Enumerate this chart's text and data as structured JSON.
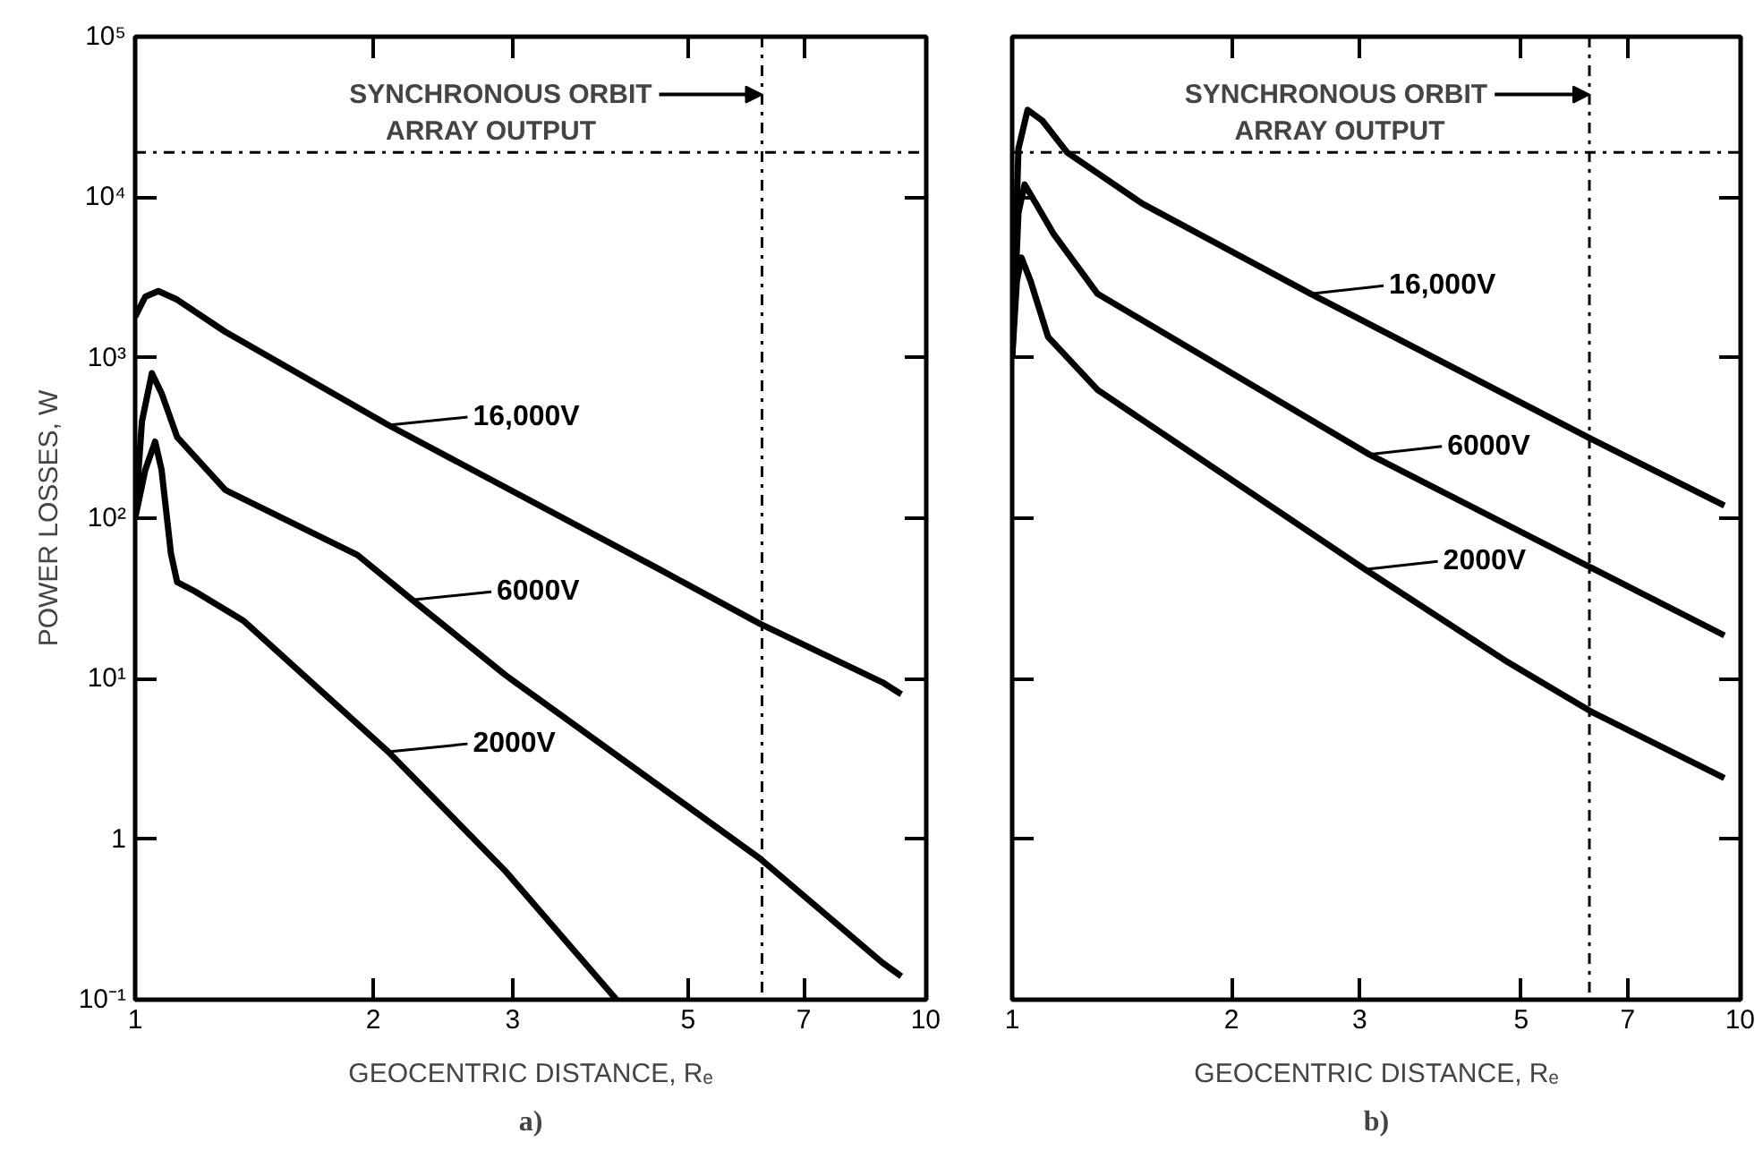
{
  "chart_data": [
    {
      "type": "line",
      "title": "a)",
      "xlabel": "GEOCENTRIC DISTANCE, Rₑ",
      "ylabel": "POWER LOSSES, W",
      "log": "xy",
      "grid": false,
      "line_style": "solid",
      "xlim": [
        1,
        10
      ],
      "ylim": [
        0.1,
        100000
      ],
      "xticks": [
        1,
        2,
        3,
        5,
        7,
        10
      ],
      "yticks": [
        {
          "value": 0.1,
          "label": "10⁻¹"
        },
        1,
        {
          "value": 10,
          "label": "10¹"
        },
        {
          "value": 100,
          "label": "10²"
        },
        {
          "value": 1000,
          "label": "10³"
        },
        {
          "value": 10000,
          "label": "10⁴"
        },
        {
          "value": 100000,
          "label": "10⁵"
        }
      ],
      "series": [
        {
          "color": "#000000",
          "x": [
            1.0,
            1.03,
            1.07,
            1.13,
            1.3,
            2.09,
            4.6,
            6.16,
            8.8,
            9.3
          ],
          "values": [
            1800,
            2400,
            2600,
            2300,
            1450,
            380,
            48,
            22,
            9.5,
            8
          ]
        },
        {
          "color": "#000000",
          "x": [
            1.0,
            1.02,
            1.05,
            1.08,
            1.13,
            1.3,
            1.91,
            2.24,
            2.94,
            6.16,
            8.8,
            9.3
          ],
          "values": [
            100,
            400,
            800,
            600,
            320,
            150,
            59,
            31,
            10.5,
            0.76,
            0.17,
            0.14
          ]
        },
        {
          "color": "#000000",
          "x": [
            1.0,
            1.03,
            1.06,
            1.08,
            1.11,
            1.13,
            1.19,
            1.37,
            2.09,
            2.94,
            4.06
          ],
          "values": [
            100,
            200,
            300,
            200,
            60,
            40,
            35,
            23,
            3.5,
            0.63,
            0.1
          ]
        }
      ],
      "ref_lines": [
        {
          "axis": "x",
          "value": 6.2,
          "label": "SYNCHRONOUS ORBIT",
          "color": "#000000",
          "line_style": "dashdot"
        },
        {
          "axis": "y",
          "value": 19000,
          "label": "ARRAY OUTPUT",
          "color": "#000000",
          "line_style": "dashdot"
        }
      ],
      "annotations": [
        {
          "text": "16,000V",
          "x": 2.09,
          "y": 380
        },
        {
          "text": "6000V",
          "x": 2.24,
          "y": 31
        },
        {
          "text": "2000V",
          "x": 2.09,
          "y": 3.5
        }
      ]
    },
    {
      "type": "line",
      "title": "b)",
      "xlabel": "GEOCENTRIC DISTANCE, Rₑ",
      "log": "xy",
      "grid": false,
      "line_style": "solid",
      "tick_labels": "x",
      "xlim": [
        1,
        10
      ],
      "ylim": [
        0.1,
        100000
      ],
      "xticks": [
        1,
        2,
        3,
        5,
        7,
        10
      ],
      "yticks": [
        {
          "value": 0.1,
          "label": null
        },
        {
          "value": 1,
          "label": null
        },
        {
          "value": 10,
          "label": null
        },
        {
          "value": 100,
          "label": null
        },
        {
          "value": 1000,
          "label": null
        },
        {
          "value": 10000,
          "label": null
        },
        {
          "value": 100000,
          "label": null
        }
      ],
      "series": [
        {
          "color": "#000000",
          "x": [
            1.0,
            1.02,
            1.05,
            1.1,
            1.19,
            1.51,
            2.57,
            6.25,
            9.5
          ],
          "values": [
            1000,
            20000,
            35000,
            30000,
            19000,
            9100,
            2500,
            310,
            120
          ]
        },
        {
          "color": "#000000",
          "x": [
            1.0,
            1.02,
            1.04,
            1.08,
            1.14,
            1.31,
            3.09,
            6.3,
            9.5
          ],
          "values": [
            1000,
            8000,
            12000,
            9000,
            5900,
            2500,
            250,
            48,
            18.6
          ]
        },
        {
          "color": "#000000",
          "x": [
            1.0,
            1.015,
            1.03,
            1.06,
            1.12,
            1.31,
            3.05,
            4.8,
            6.25,
            9.5
          ],
          "values": [
            1000,
            3000,
            4200,
            3000,
            1350,
            630,
            48,
            12.6,
            6.2,
            2.4
          ]
        }
      ],
      "ref_lines": [
        {
          "axis": "x",
          "value": 6.2,
          "label": "SYNCHRONOUS ORBIT",
          "color": "#000000",
          "line_style": "dashdot"
        },
        {
          "axis": "y",
          "value": 19000,
          "label": "ARRAY OUTPUT",
          "color": "#000000",
          "line_style": "dashdot"
        }
      ],
      "annotations": [
        {
          "text": "16,000V",
          "x": 2.57,
          "y": 2500
        },
        {
          "text": "6000V",
          "x": 3.09,
          "y": 250
        },
        {
          "text": "2000V",
          "x": 3.05,
          "y": 48
        }
      ]
    }
  ]
}
